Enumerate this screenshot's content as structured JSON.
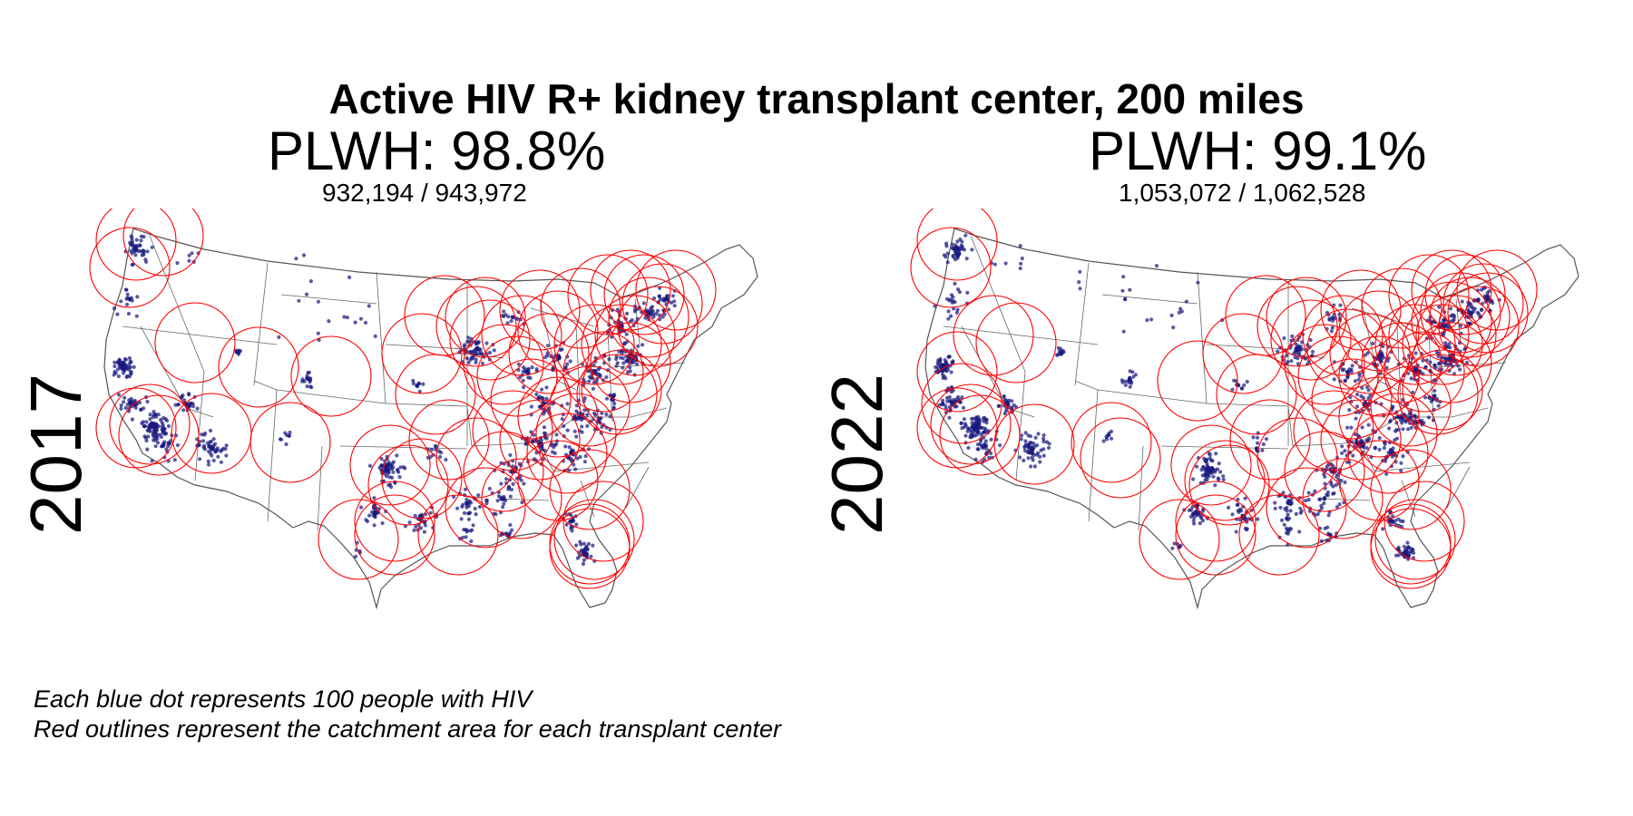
{
  "title": "Active HIV R+ kidney transplant center, 200 miles",
  "panels": [
    {
      "year": "2017",
      "plwh_label": "PLWH: 98.8%",
      "count_label": "932,194 / 943,972"
    },
    {
      "year": "2022",
      "plwh_label": "PLWH: 99.1%",
      "count_label": "1,053,072 / 1,062,528"
    }
  ],
  "caption": {
    "line1": "Each blue dot represents 100 people with HIV",
    "line2": "Red outlines represent the catchment area for each transplant center"
  },
  "colors": {
    "dot": "#1a1a80",
    "catchment": "#ff0000",
    "border": "#555555"
  }
}
